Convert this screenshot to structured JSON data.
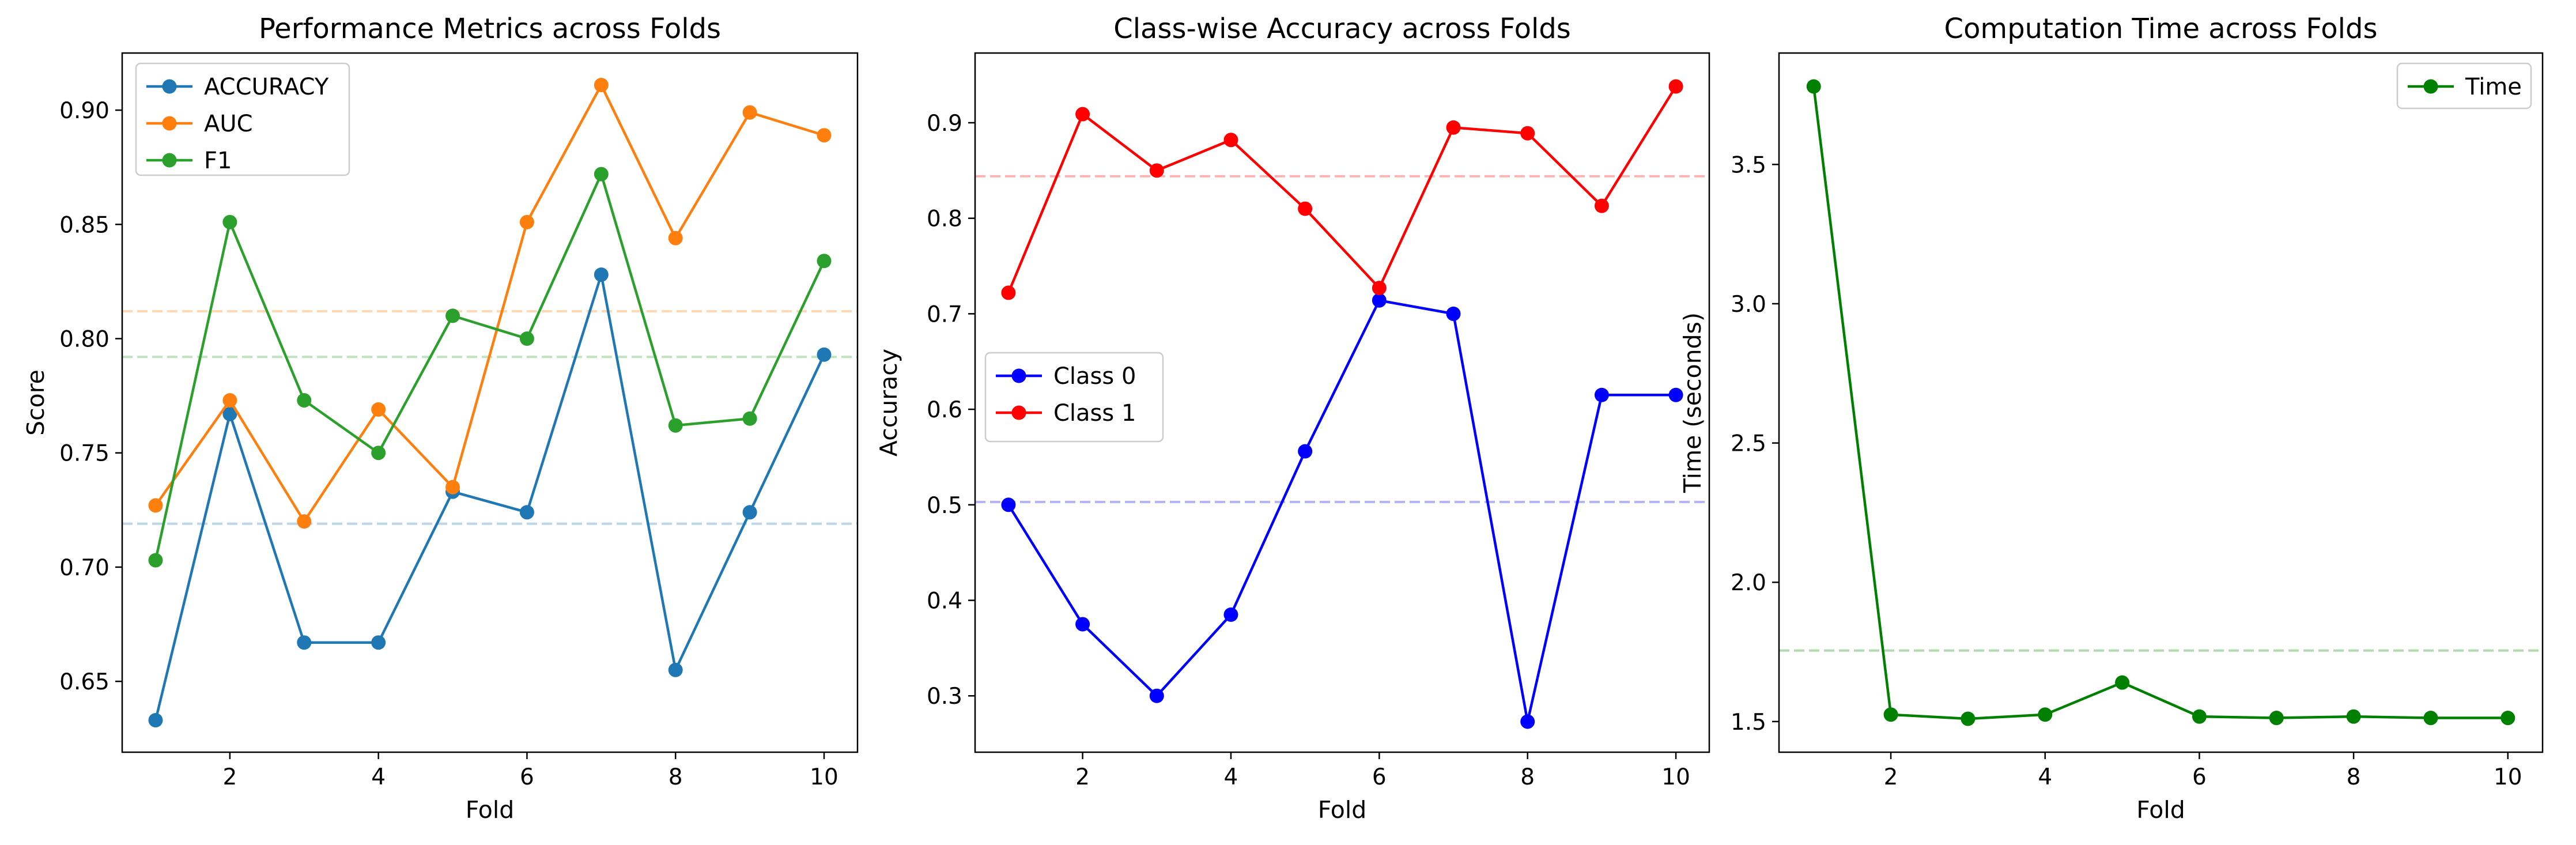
{
  "chart_data": [
    {
      "type": "line",
      "title": "Performance Metrics across Folds",
      "xlabel": "Fold",
      "ylabel": "Score",
      "xlim": [
        0.55,
        10.45
      ],
      "ylim": [
        0.619,
        0.925
      ],
      "xticks": [
        2,
        4,
        6,
        8,
        10
      ],
      "yticks": [
        0.65,
        0.7,
        0.75,
        0.8,
        0.85,
        0.9
      ],
      "ytick_labels": [
        "0.65",
        "0.70",
        "0.75",
        "0.80",
        "0.85",
        "0.90"
      ],
      "legend_position": "upper-left",
      "x": [
        1,
        2,
        3,
        4,
        5,
        6,
        7,
        8,
        9,
        10
      ],
      "series": [
        {
          "name": "ACCURACY",
          "color": "#1f77b4",
          "values": [
            0.633,
            0.767,
            0.667,
            0.667,
            0.733,
            0.724,
            0.828,
            0.655,
            0.724,
            0.793
          ],
          "mean": 0.719
        },
        {
          "name": "AUC",
          "color": "#ff7f0e",
          "values": [
            0.727,
            0.773,
            0.72,
            0.769,
            0.735,
            0.851,
            0.911,
            0.844,
            0.899,
            0.889
          ],
          "mean": 0.812
        },
        {
          "name": "F1",
          "color": "#2ca02c",
          "values": [
            0.703,
            0.851,
            0.773,
            0.75,
            0.81,
            0.8,
            0.872,
            0.762,
            0.765,
            0.834
          ],
          "mean": 0.792
        }
      ]
    },
    {
      "type": "line",
      "title": "Class-wise Accuracy across Folds",
      "xlabel": "Fold",
      "ylabel": "Accuracy",
      "xlim": [
        0.55,
        10.45
      ],
      "ylim": [
        0.241,
        0.973
      ],
      "xticks": [
        2,
        4,
        6,
        8,
        10
      ],
      "yticks": [
        0.3,
        0.4,
        0.5,
        0.6,
        0.7,
        0.8,
        0.9
      ],
      "ytick_labels": [
        "0.3",
        "0.4",
        "0.5",
        "0.6",
        "0.7",
        "0.8",
        "0.9"
      ],
      "legend_position": "center-left",
      "x": [
        1,
        2,
        3,
        4,
        5,
        6,
        7,
        8,
        9,
        10
      ],
      "series": [
        {
          "name": "Class 0",
          "color": "#0000ff",
          "values": [
            0.5,
            0.375,
            0.3,
            0.385,
            0.556,
            0.714,
            0.7,
            0.273,
            0.615,
            0.615
          ],
          "mean": 0.503
        },
        {
          "name": "Class 1",
          "color": "#ff0000",
          "values": [
            0.722,
            0.909,
            0.85,
            0.882,
            0.81,
            0.727,
            0.895,
            0.889,
            0.813,
            0.938
          ],
          "mean": 0.844
        }
      ]
    },
    {
      "type": "line",
      "title": "Computation Time across Folds",
      "xlabel": "Fold",
      "ylabel": "Time (seconds)",
      "xlim": [
        0.55,
        10.45
      ],
      "ylim": [
        1.39,
        3.9
      ],
      "xticks": [
        2,
        4,
        6,
        8,
        10
      ],
      "yticks": [
        1.5,
        2.0,
        2.5,
        3.0,
        3.5
      ],
      "ytick_labels": [
        "1.5",
        "2.0",
        "2.5",
        "3.0",
        "3.5"
      ],
      "legend_position": "upper-right",
      "x": [
        1,
        2,
        3,
        4,
        5,
        6,
        7,
        8,
        9,
        10
      ],
      "series": [
        {
          "name": "Time",
          "color": "#008000",
          "values": [
            3.78,
            1.525,
            1.51,
            1.525,
            1.64,
            1.518,
            1.513,
            1.518,
            1.513,
            1.513
          ],
          "mean": 1.755
        }
      ]
    }
  ]
}
